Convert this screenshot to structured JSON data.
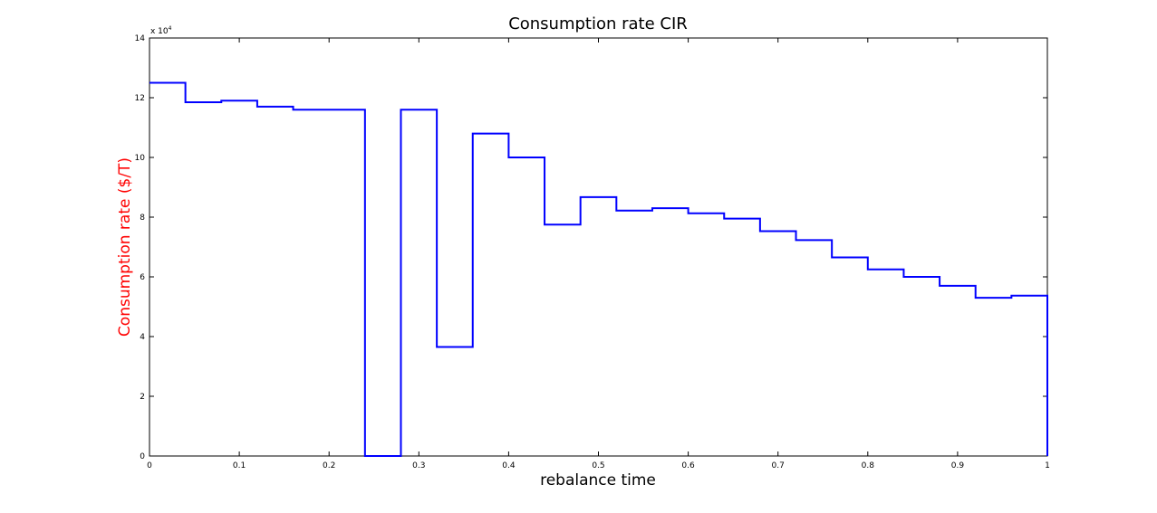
{
  "chart_data": {
    "type": "line",
    "step": true,
    "title": "Consumption rate CIR",
    "xlabel": "rebalance time",
    "ylabel": "Consumption rate ($/T)",
    "y_exponent_label": "x 10",
    "y_exponent_power": "4",
    "xlim": [
      0,
      1
    ],
    "ylim": [
      0,
      140000
    ],
    "x_ticks": [
      0,
      0.1,
      0.2,
      0.3,
      0.4,
      0.5,
      0.6,
      0.7,
      0.8,
      0.9,
      1
    ],
    "x_tick_labels": [
      "0",
      "0.1",
      "0.2",
      "0.3",
      "0.4",
      "0.5",
      "0.6",
      "0.7",
      "0.8",
      "0.9",
      "1"
    ],
    "y_ticks": [
      0,
      20000,
      40000,
      60000,
      80000,
      100000,
      120000,
      140000
    ],
    "y_tick_labels": [
      "0",
      "2",
      "4",
      "6",
      "8",
      "10",
      "12",
      "14"
    ],
    "grid": false,
    "legend": null,
    "series": [
      {
        "color": "#0000ff",
        "x": [
          0,
          0.04,
          0.08,
          0.12,
          0.16,
          0.2,
          0.24,
          0.28,
          0.32,
          0.36,
          0.4,
          0.44,
          0.48,
          0.52,
          0.56,
          0.6,
          0.64,
          0.68,
          0.72,
          0.76,
          0.8,
          0.84,
          0.88,
          0.92,
          0.96,
          1.0
        ],
        "y": [
          125000,
          118500,
          119000,
          117000,
          116000,
          116000,
          0,
          116000,
          36500,
          108000,
          100000,
          77500,
          86700,
          82200,
          83000,
          81300,
          79500,
          75300,
          72300,
          66500,
          62500,
          60000,
          57000,
          53000,
          53700,
          0
        ]
      }
    ],
    "colors": {
      "title": "#000000",
      "xlabel": "#000000",
      "ylabel": "#ff0000",
      "axes": "#000000",
      "line": "#0000ff",
      "background": "#ffffff"
    }
  }
}
